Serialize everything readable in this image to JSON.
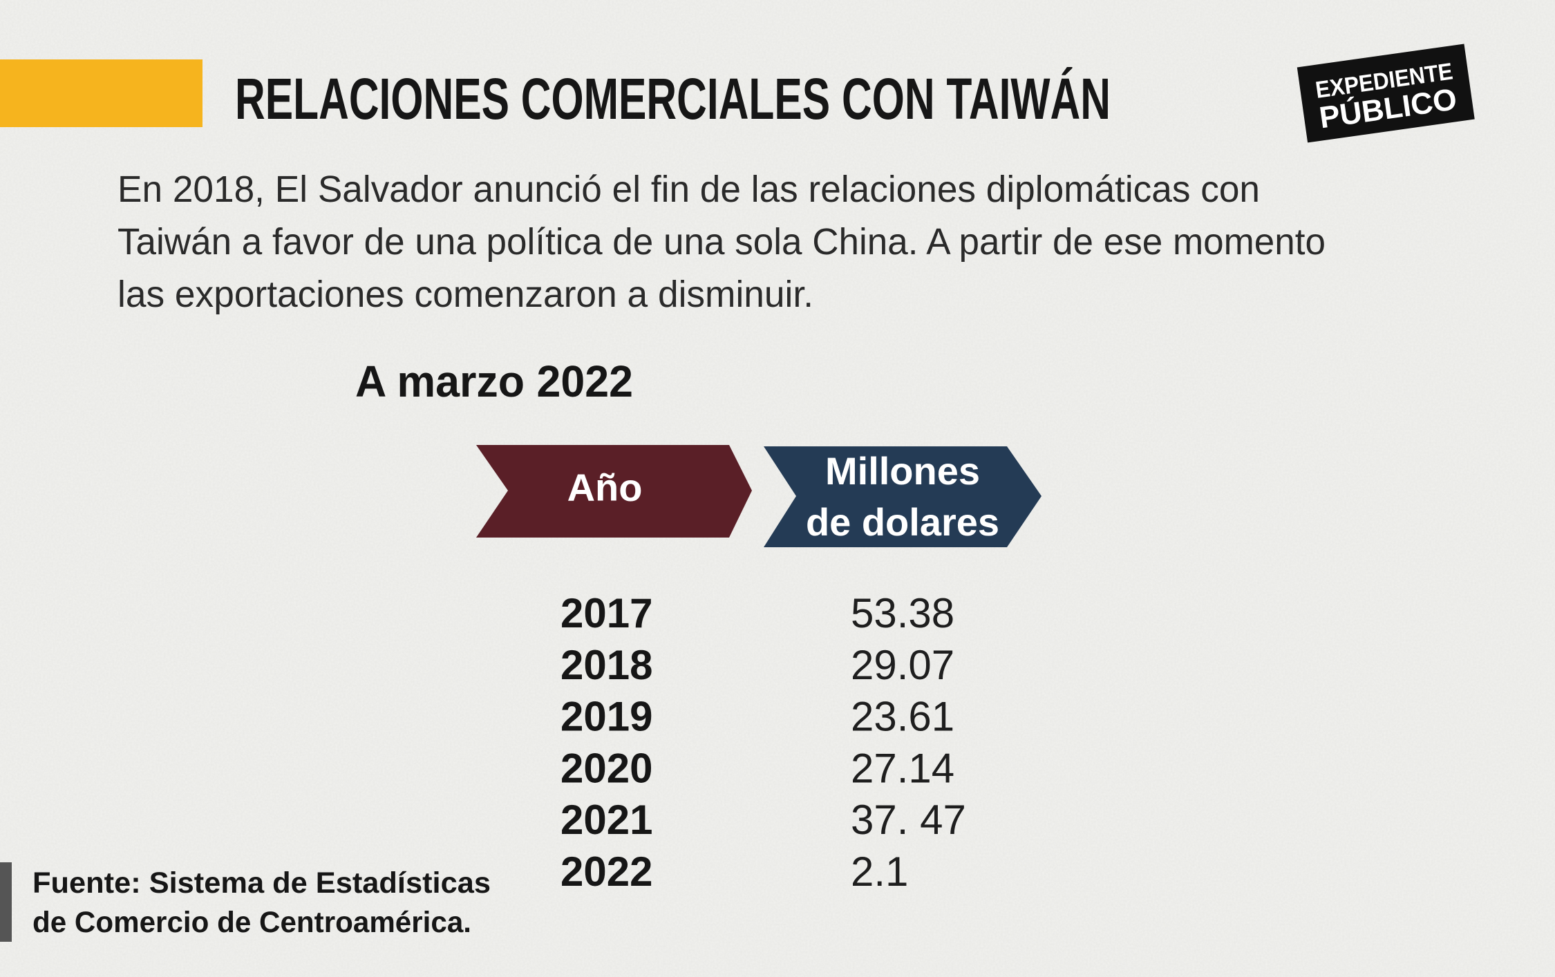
{
  "header": {
    "title": "RELACIONES COMERCIALES CON TAIWÁN"
  },
  "logo": {
    "line1": "EXPEDIENTE",
    "line2": "PÚBLICO"
  },
  "intro": [
    "En 2018, El Salvador anunció el fin de las relaciones diplomáticas con",
    "Taiwán a favor de una política de una sola China. A partir de ese momento",
    "las exportaciones comenzaron a disminuir."
  ],
  "table": {
    "subtitle": "A marzo 2022",
    "headers": [
      "Año",
      [
        "Millones",
        "de dolares"
      ]
    ],
    "rows": [
      [
        "2017",
        "53.38"
      ],
      [
        "2018",
        "29.07"
      ],
      [
        "2019",
        "23.61"
      ],
      [
        "2020",
        "27.14"
      ],
      [
        "2021",
        "37. 47"
      ],
      [
        "2022",
        "2.1"
      ]
    ]
  },
  "source": [
    "Fuente: Sistema de Estadísticas",
    "de Comercio de Centroamérica."
  ]
}
